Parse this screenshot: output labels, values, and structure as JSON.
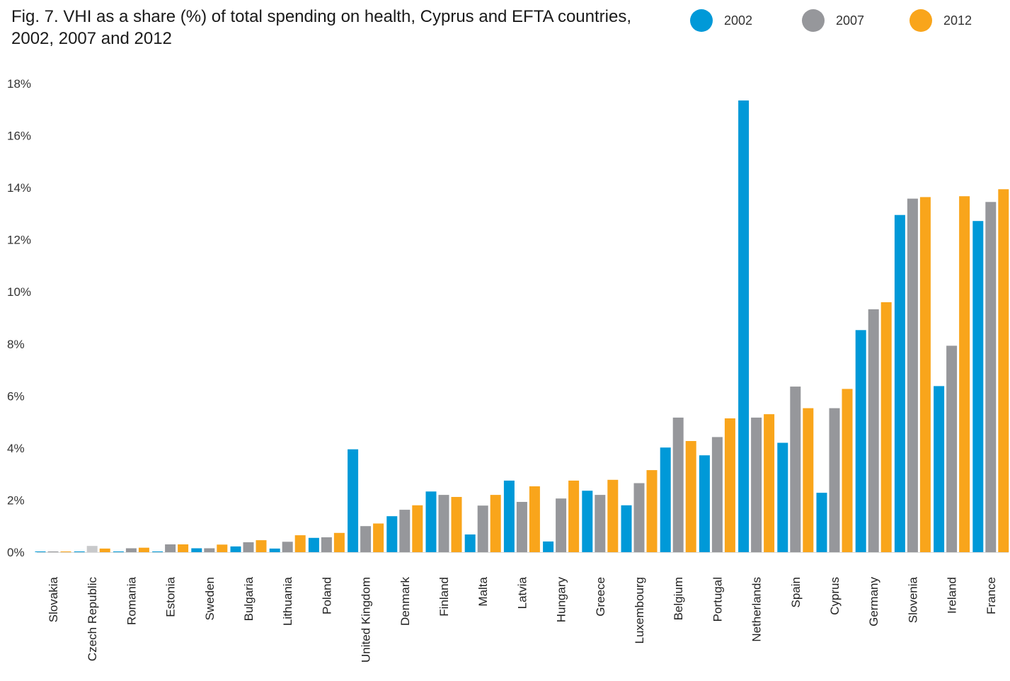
{
  "title": "Fig. 7. VHI as a share (%) of total spending on health, Cyprus and EFTA countries, 2002, 2007 and 2012",
  "colors": {
    "2002": "#0099d8",
    "2007": "#96979b",
    "2012": "#f9a51b",
    "2007_light": "#c8c9cb"
  },
  "chart_data": {
    "type": "bar",
    "title": "Fig. 7. VHI as a share (%) of total spending on health, Cyprus and EFTA countries, 2002, 2007 and 2012",
    "xlabel": "",
    "ylabel": "",
    "ylim": [
      0,
      18
    ],
    "yticks": [
      "0%",
      "2%",
      "4%",
      "6%",
      "8%",
      "10%",
      "12%",
      "14%",
      "16%",
      "18%"
    ],
    "legend_position": "top-right",
    "grid": false,
    "categories": [
      "Slovakia",
      "Czech Republic",
      "Romania",
      "Estonia",
      "Sweden",
      "Bulgaria",
      "Lithuania",
      "Poland",
      "United Kingdom",
      "Denmark",
      "Finland",
      "Malta",
      "Latvia",
      "Hungary",
      "Greece",
      "Luxembourg",
      "Belgium",
      "Portugal",
      "Netherlands",
      "Spain",
      "Cyprus",
      "Germany",
      "Slovenia",
      "Ireland",
      "France"
    ],
    "series": [
      {
        "name": "2002",
        "values": [
          0.02,
          0.02,
          0.02,
          0.02,
          0.15,
          0.22,
          0.14,
          0.55,
          3.95,
          1.38,
          2.33,
          0.68,
          2.75,
          0.41,
          2.36,
          1.8,
          4.02,
          3.72,
          17.35,
          4.2,
          2.28,
          8.53,
          12.95,
          6.38,
          12.72
        ]
      },
      {
        "name": "2007",
        "values": [
          0.02,
          0.24,
          0.15,
          0.3,
          0.15,
          0.38,
          0.4,
          0.57,
          1.0,
          1.63,
          2.2,
          1.79,
          1.93,
          2.06,
          2.2,
          2.65,
          5.17,
          4.42,
          5.17,
          6.36,
          5.53,
          9.33,
          13.58,
          7.93,
          13.45
        ]
      },
      {
        "name": "2012",
        "values": [
          0.02,
          0.14,
          0.17,
          0.3,
          0.29,
          0.46,
          0.65,
          0.74,
          1.1,
          1.8,
          2.12,
          2.2,
          2.53,
          2.75,
          2.78,
          3.15,
          4.27,
          5.14,
          5.3,
          5.53,
          6.27,
          9.6,
          13.64,
          13.67,
          13.94
        ]
      }
    ]
  }
}
